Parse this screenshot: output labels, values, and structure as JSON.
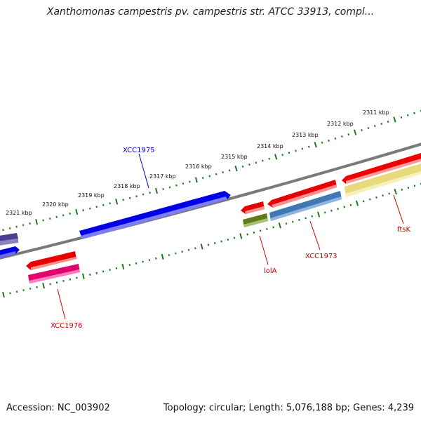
{
  "title": "Xanthomonas campestris pv. campestris str. ATCC 33913, compl...",
  "footer": {
    "accession": "Accession: NC_003902",
    "stats": "Topology: circular; Length: 5,076,188 bp; Genes: 4,239"
  },
  "colors": {
    "backbone": "#7a7a7a",
    "tick": "#1f7a1f",
    "label_blue": "#0000cc",
    "label_red": "#cc0000"
  },
  "scale_labels": [
    "2311 kbp",
    "2312 kbp",
    "2313 kbp",
    "2314 kbp",
    "2315 kbp",
    "2316 kbp",
    "2317 kbp",
    "2318 kbp",
    "2319 kbp",
    "2320 kbp",
    "2321 kbp"
  ],
  "genes": [
    {
      "label": "XCC1975",
      "strand": "forward"
    },
    {
      "label": "XCC1976",
      "strand": "reverse"
    },
    {
      "label": "lolA",
      "strand": "reverse"
    },
    {
      "label": "XCC1973",
      "strand": "reverse"
    },
    {
      "label": "ftsK",
      "strand": "reverse"
    }
  ]
}
